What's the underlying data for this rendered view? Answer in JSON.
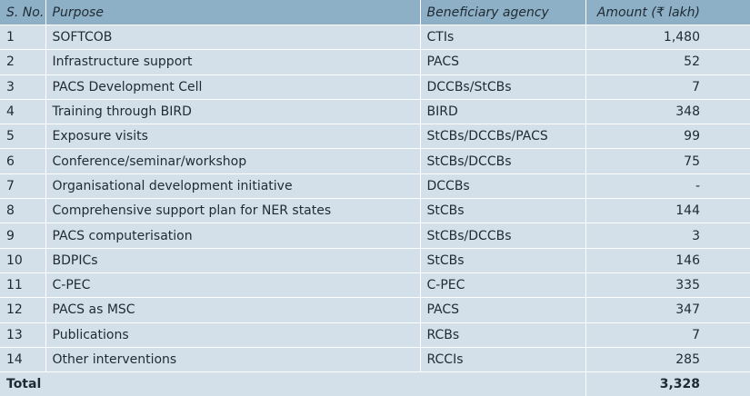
{
  "table": {
    "headers": [
      "S. No.",
      "Purpose",
      "Beneficiary agency",
      "Amount (₹ lakh)"
    ],
    "rows": [
      {
        "no": "1",
        "purpose": "SOFTCOB",
        "agency": "CTIs",
        "amount": "1,480"
      },
      {
        "no": "2",
        "purpose": "Infrastructure support",
        "agency": "PACS",
        "amount": "52"
      },
      {
        "no": "3",
        "purpose": "PACS Development Cell",
        "agency": "DCCBs/StCBs",
        "amount": "7"
      },
      {
        "no": "4",
        "purpose": "Training through BIRD",
        "agency": "BIRD",
        "amount": "348"
      },
      {
        "no": "5",
        "purpose": "Exposure visits",
        "agency": "StCBs/DCCBs/PACS",
        "amount": "99"
      },
      {
        "no": "6",
        "purpose": "Conference/seminar/workshop",
        "agency": "StCBs/DCCBs",
        "amount": "75"
      },
      {
        "no": "7",
        "purpose": "Organisational development initiative",
        "agency": "DCCBs",
        "amount": "-"
      },
      {
        "no": "8",
        "purpose": "Comprehensive support plan for NER states",
        "agency": "StCBs",
        "amount": "144"
      },
      {
        "no": "9",
        "purpose": "PACS computerisation",
        "agency": "StCBs/DCCBs",
        "amount": "3"
      },
      {
        "no": "10",
        "purpose": "BDPICs",
        "agency": "StCBs",
        "amount": "146"
      },
      {
        "no": "11",
        "purpose": "C-PEC",
        "agency": "C-PEC",
        "amount": "335"
      },
      {
        "no": "12",
        "purpose": "PACS as MSC",
        "agency": "PACS",
        "amount": "347"
      },
      {
        "no": "13",
        "purpose": "Publications",
        "agency": "RCBs",
        "amount": "7"
      },
      {
        "no": "14",
        "purpose": "Other interventions",
        "agency": "RCCIs",
        "amount": "285"
      }
    ],
    "total": {
      "label": "Total",
      "amount": "3,328"
    }
  }
}
